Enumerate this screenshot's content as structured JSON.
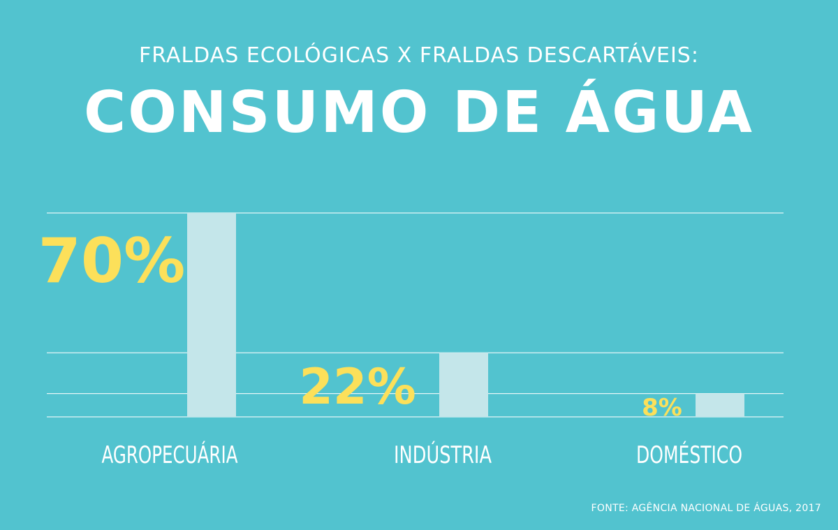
{
  "header": {
    "subtitle": "FRALDAS ECOLÓGICAS X FRALDAS DESCARTÁVEIS:",
    "title": "CONSUMO DE ÁGUA"
  },
  "chart_data": {
    "type": "bar",
    "categories": [
      "AGROPECUÁRIA",
      "INDÚSTRIA",
      "DOMÉSTICO"
    ],
    "values": [
      70,
      22,
      8
    ],
    "data_labels": [
      "70%",
      "22%",
      "8%"
    ],
    "ylim": [
      0,
      70
    ],
    "grid": true,
    "colors": {
      "background": "#52c3cf",
      "bar": "#c4e6ea",
      "value_label": "#fce05a",
      "gridline": "#e6f6f8",
      "text": "#ffffff"
    }
  },
  "footer": {
    "source": "FONTE: AGÊNCIA NACIONAL DE ÁGUAS, 2017"
  }
}
